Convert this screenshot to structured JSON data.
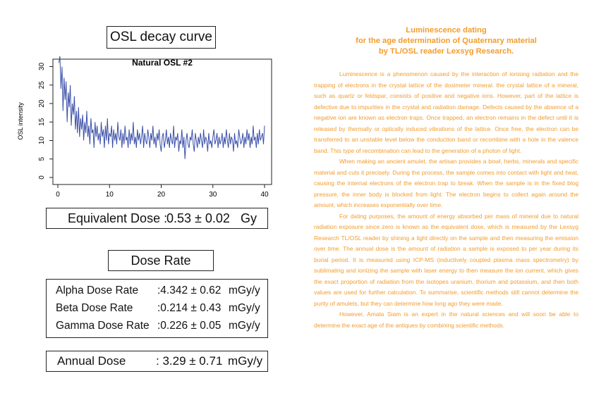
{
  "left": {
    "title": "OSL decay curve",
    "equivalent_dose": {
      "label": "Equivalent Dose :",
      "value": "0.53 ± 0.02",
      "unit": "Gy"
    },
    "dose_rate_title": "Dose Rate",
    "dose_rates": [
      {
        "label": "Alpha Dose Rate",
        "value": ":4.342 ± 0.62",
        "unit": "mGy/y"
      },
      {
        "label": "Beta Dose Rate",
        "value": ":0.214 ± 0.43",
        "unit": "mGy/y"
      },
      {
        "label": "Gamma Dose Rate",
        "value": ":0.226 ± 0.05",
        "unit": "mGy/y"
      }
    ],
    "annual_dose": {
      "label": "Annual Dose",
      "value": ": 3.29 ± 0.71",
      "unit": "mGy/y"
    }
  },
  "right": {
    "title_lines": [
      "Luminescence dating",
      "for the age determination of Quaternary material",
      "by TL/OSL reader Lexsyg Research."
    ],
    "paragraphs": [
      "Luminescence is a phenomenon caused by the interaction of ionising radiation and the trapping of electrons in the crystal lattice of the dosimeter mineral. the crystal lattice of a mineral, such as quartz or feldspar, consists of positive and negative ions. However, part of the lattice is defective due to impurities in the crystal and radiation damage. Defects caused by the absence of a negative ion are known as electron traps. Once trapped, an electron remains in the defect until it is released by thermally or optically induced vibrations of the lattice. Once free, the electron can be transferred to an unstable level below the conduction band or recombine with a hole in the valence band. This type of recombination can lead to the generation of a photon of light.",
      "When making an ancient amulet, the artisan provides a bowl, herbs, minerals and specific material and cuts it precisely. During the process, the sample comes into contact with light and heat, causing the internal electrons of the electron trap to break. When the sample is in the fixed blog pressure, the inner body is blocked from light. The electron begins to collect again around the amount, which increases exponentially over time.",
      "For dating purposes, the amount of energy absorbed per mass of mineral due to natural radiation exposure since zero is known as the equivalent dose, which is measured by the Lexsyg Research TL/OSL reader by shining a light directly on the sample and then measuring the emission over time. The annual dose is the amount of radiation a sample is exposed to per year during its burial period. It is measured using ICP-MS (inductively coupled plasma mass spectrometry) by sublimating and ionizing the sample with laser energy to then measure the ion current, which gives the exact proportion of radiation from the isotopes uranium, thorium and potassium, and then both values are used for further calculation. To summarise, scientific methods still cannot determine the purity of amulets, but they can determine how long ago they were made.",
      "However, Amata Siam is an expert in the natural sciences and will soon be able to determine the exact age of the antiques by combining scientific methods."
    ]
  },
  "chart_data": {
    "type": "line",
    "title": "Natural OSL #2",
    "xlabel": "",
    "ylabel": "OSL intensity",
    "xlim": [
      0,
      40
    ],
    "ylim": [
      0,
      32
    ],
    "xticks": [
      0,
      10,
      20,
      30,
      40
    ],
    "yticks": [
      0,
      5,
      10,
      15,
      20,
      25,
      30
    ],
    "grid": false,
    "line_color": "#3a4fa8",
    "series": [
      {
        "x": [
          0.2,
          0.4,
          0.6,
          0.8,
          1.0,
          1.2,
          1.4,
          1.6,
          1.8,
          2.0,
          2.2,
          2.4,
          2.6,
          2.8,
          3.0,
          3.2,
          3.4,
          3.6,
          3.8,
          4.0,
          4.2,
          4.4,
          4.6,
          4.8,
          5.0,
          5.2,
          5.4,
          5.6,
          5.8,
          6.0,
          6.2,
          6.4,
          6.6,
          6.8,
          7.0,
          7.2,
          7.4,
          7.6,
          7.8,
          8.0,
          8.2,
          8.4,
          8.6,
          8.8,
          9.0,
          9.2,
          9.4,
          9.6,
          9.8,
          10.0,
          10.2,
          10.4,
          10.6,
          10.8,
          11.0,
          11.2,
          11.4,
          11.6,
          11.8,
          12.0,
          12.2,
          12.4,
          12.6,
          12.8,
          13.0,
          13.2,
          13.4,
          13.6,
          13.8,
          14.0,
          14.2,
          14.4,
          14.6,
          14.8,
          15.0,
          15.2,
          15.4,
          15.6,
          15.8,
          16.0,
          16.2,
          16.4,
          16.6,
          16.8,
          17.0,
          17.2,
          17.4,
          17.6,
          17.8,
          18.0,
          18.2,
          18.4,
          18.6,
          18.8,
          19.0,
          19.2,
          19.4,
          19.6,
          19.8,
          20.0,
          20.2,
          20.4,
          20.6,
          20.8,
          21.0,
          21.2,
          21.4,
          21.6,
          21.8,
          22.0,
          22.2,
          22.4,
          22.6,
          22.8,
          23.0,
          23.2,
          23.4,
          23.6,
          23.8,
          24.0,
          24.2,
          24.4,
          24.6,
          24.8,
          25.0,
          25.2,
          25.4,
          25.6,
          25.8,
          26.0,
          26.2,
          26.4,
          26.6,
          26.8,
          27.0,
          27.2,
          27.4,
          27.6,
          27.8,
          28.0,
          28.2,
          28.4,
          28.6,
          28.8,
          29.0,
          29.2,
          29.4,
          29.6,
          29.8,
          30.0,
          30.2,
          30.4,
          30.6,
          30.8,
          31.0,
          31.2,
          31.4,
          31.6,
          31.8,
          32.0,
          32.2,
          32.4,
          32.6,
          32.8,
          33.0,
          33.2,
          33.4,
          33.6,
          33.8,
          34.0,
          34.2,
          34.4,
          34.6,
          34.8,
          35.0,
          35.2,
          35.4,
          35.6,
          35.8,
          36.0,
          36.2,
          36.4,
          36.6,
          36.8,
          37.0,
          37.2,
          37.4,
          37.6,
          37.8,
          38.0,
          38.2,
          38.4,
          38.6,
          38.8,
          39.0,
          39.2,
          39.4,
          39.6,
          39.8,
          40.0
        ],
        "y": [
          31,
          33,
          24,
          30,
          18,
          27,
          21,
          26,
          15,
          23,
          19,
          25,
          14,
          20,
          17,
          22,
          13,
          18,
          12,
          19,
          11,
          16,
          13,
          17,
          10,
          15,
          12,
          18,
          11,
          14,
          9,
          16,
          12,
          13,
          8,
          15,
          11,
          14,
          10,
          12,
          9,
          15,
          11,
          13,
          8,
          14,
          10,
          16,
          9,
          12,
          11,
          14,
          8,
          13,
          10,
          12,
          9,
          15,
          11,
          10,
          13,
          8,
          12,
          9,
          14,
          10,
          11,
          8,
          13,
          9,
          12,
          10,
          15,
          9,
          11,
          8,
          13,
          10,
          12,
          9,
          11,
          14,
          8,
          12,
          10,
          9,
          13,
          11,
          8,
          12,
          10,
          14,
          9,
          11,
          8,
          12,
          10,
          13,
          9,
          7,
          11,
          12,
          8,
          10,
          13,
          9,
          11,
          8,
          12,
          10,
          9,
          14,
          8,
          11,
          10,
          12,
          7,
          10,
          9,
          13,
          8,
          11,
          5,
          10,
          12,
          9,
          8,
          11,
          10,
          13,
          9,
          7,
          12,
          10,
          8,
          11,
          9,
          12,
          10,
          8,
          13,
          9,
          11,
          10,
          7,
          12,
          9,
          10,
          8,
          11,
          13,
          9,
          10,
          12,
          8,
          11,
          9,
          10,
          12,
          8,
          11,
          9,
          13,
          10,
          8,
          12,
          9,
          11,
          10,
          7,
          12,
          9,
          10,
          8,
          13,
          11,
          9,
          10,
          12,
          8,
          11,
          9,
          13,
          10,
          12,
          8,
          11,
          9,
          14,
          10,
          11,
          8,
          12,
          9,
          13,
          10,
          11,
          12,
          9,
          14
        ]
      }
    ]
  }
}
